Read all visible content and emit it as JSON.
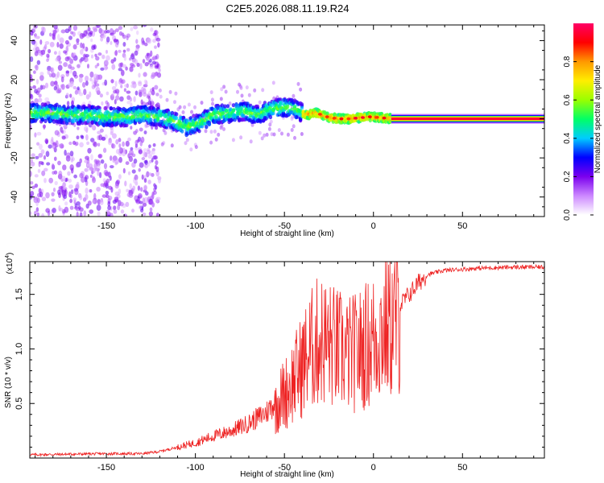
{
  "page": {
    "title": "C2E5.2026.088.11.19.R24"
  },
  "chart_data": [
    {
      "type": "heatmap",
      "title": "C2E5.2026.088.11.19.R24",
      "xlabel": "Height of straight line (km)",
      "ylabel": "Frequency (Hz)",
      "xlim": [
        -193,
        96
      ],
      "ylim": [
        -50,
        48
      ],
      "x_ticks": [
        -150,
        -100,
        -50,
        0,
        50
      ],
      "x_tick_labels": [
        "-150",
        "-100",
        "-50",
        "0",
        "50"
      ],
      "y_ticks": [
        -40,
        -20,
        0,
        20,
        40
      ],
      "y_tick_labels": [
        "-40",
        "-20",
        "0",
        "20",
        "40"
      ],
      "colorbar": {
        "label": "Normalized spectral amplitude",
        "range": [
          0,
          1
        ],
        "ticks": [
          0.0,
          0.2,
          0.4,
          0.6,
          0.8
        ],
        "tick_labels": [
          "0.0",
          "0.2",
          "0.4",
          "0.6",
          "0.8"
        ],
        "colormap": [
          "#ffffff",
          "#cc88ff",
          "#7b00ee",
          "#0000ff",
          "#00ccff",
          "#00ff66",
          "#99ff00",
          "#ffee00",
          "#ff9900",
          "#ff0000",
          "#ff0066"
        ]
      },
      "frequency_track": [
        [
          -190,
          3
        ],
        [
          -180,
          3
        ],
        [
          -170,
          2
        ],
        [
          -160,
          2
        ],
        [
          -150,
          1
        ],
        [
          -140,
          1
        ],
        [
          -130,
          2
        ],
        [
          -120,
          1
        ],
        [
          -112,
          -1
        ],
        [
          -105,
          -4
        ],
        [
          -98,
          -2
        ],
        [
          -90,
          2
        ],
        [
          -80,
          3
        ],
        [
          -72,
          4
        ],
        [
          -65,
          2
        ],
        [
          -58,
          5
        ],
        [
          -50,
          6
        ],
        [
          -44,
          5
        ],
        [
          -38,
          2
        ],
        [
          -32,
          3
        ],
        [
          -26,
          1
        ],
        [
          -20,
          0
        ],
        [
          -14,
          0
        ],
        [
          -8,
          0.5
        ],
        [
          -2,
          1
        ],
        [
          5,
          0.5
        ],
        [
          10,
          0
        ],
        [
          20,
          0
        ],
        [
          40,
          0
        ],
        [
          60,
          0
        ],
        [
          80,
          0
        ],
        [
          95,
          0
        ]
      ],
      "noise_region_end_x": -120,
      "steady_tone_start_x": 10
    },
    {
      "type": "line",
      "xlabel": "Height of straight line (km)",
      "ylabel": "SNR (10 * v/v)",
      "y_scale_label": "(x10",
      "y_scale_exponent": "4",
      "y_scale_suffix": ")",
      "xlim": [
        -193,
        96
      ],
      "ylim": [
        0,
        1.8
      ],
      "x_ticks": [
        -150,
        -100,
        -50,
        0,
        50
      ],
      "x_tick_labels": [
        "-150",
        "-100",
        "-50",
        "0",
        "50"
      ],
      "y_ticks": [
        0.5,
        1.0,
        1.5
      ],
      "y_tick_labels": [
        "0.5",
        "1.0",
        "1.5"
      ],
      "series": [
        {
          "color": "#ee2222",
          "envelope": [
            [
              -193,
              0.03
            ],
            [
              -150,
              0.04
            ],
            [
              -130,
              0.04
            ],
            [
              -120,
              0.06
            ],
            [
              -110,
              0.1
            ],
            [
              -100,
              0.14
            ],
            [
              -90,
              0.2
            ],
            [
              -80,
              0.25
            ],
            [
              -70,
              0.32
            ],
            [
              -60,
              0.42
            ],
            [
              -50,
              0.62
            ],
            [
              -45,
              0.75
            ],
            [
              -40,
              0.9
            ],
            [
              -35,
              1.05
            ],
            [
              -30,
              1.15
            ],
            [
              -25,
              1.1
            ],
            [
              -20,
              1.05
            ],
            [
              -15,
              1.0
            ],
            [
              -10,
              1.02
            ],
            [
              -5,
              1.08
            ],
            [
              0,
              1.15
            ],
            [
              5,
              1.25
            ],
            [
              10,
              1.3
            ],
            [
              15,
              1.4
            ],
            [
              20,
              1.5
            ],
            [
              25,
              1.6
            ],
            [
              30,
              1.68
            ],
            [
              40,
              1.72
            ],
            [
              60,
              1.74
            ],
            [
              80,
              1.75
            ],
            [
              96,
              1.75
            ]
          ]
        }
      ]
    }
  ]
}
